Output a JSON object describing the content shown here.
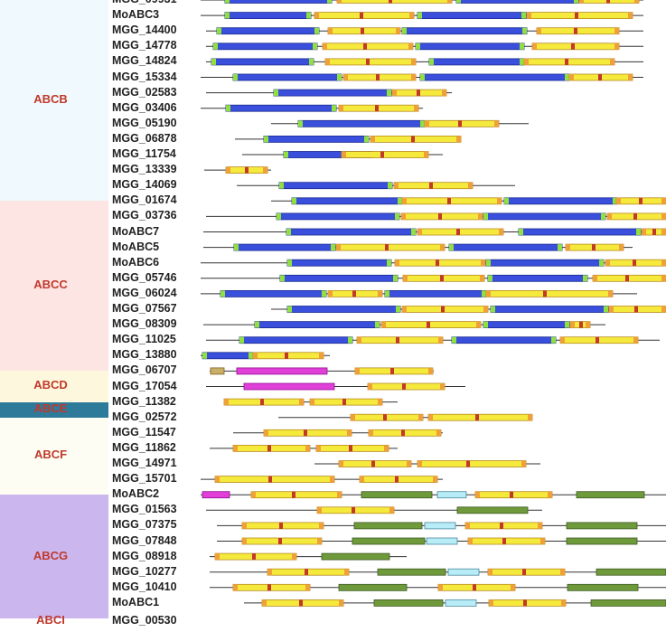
{
  "families": [
    {
      "label": "ABCB",
      "bg": "#f0f9fd",
      "text_color": "#c0392b",
      "genes": [
        "MGG_09931",
        "MoABC3",
        "MGG_14400",
        "MGG_14778",
        "MGG_14824",
        "MGG_15334",
        "MGG_02583",
        "MGG_03406",
        "MGG_05190",
        "MGG_06878",
        "MGG_11754",
        "MGG_13339",
        "MGG_14069"
      ]
    },
    {
      "label": "ABCC",
      "bg": "#fde5e3",
      "text_color": "#c0392b",
      "genes": [
        "MGG_01674",
        "MGG_03736",
        "MoABC7",
        "MoABC5",
        "MoABC6",
        "MGG_05746",
        "MGG_06024",
        "MGG_07567",
        "MGG_08309",
        "MGG_11025",
        "MGG_13880"
      ]
    },
    {
      "label": "ABCD",
      "bg": "#fdf7dd",
      "text_color": "#c0392b",
      "genes": [
        "MGG_06707",
        "MGG_17054"
      ]
    },
    {
      "label": "ABCE",
      "bg": "#2e7a9a",
      "text_color": "#c0392b",
      "genes": [
        "MGG_11382"
      ]
    },
    {
      "label": "ABCF",
      "bg": "#fdfdf3",
      "text_color": "#c0392b",
      "genes": [
        "MGG_02572",
        "MGG_11547",
        "MGG_11862",
        "MGG_14971",
        "MGG_15701"
      ]
    },
    {
      "label": "ABCG",
      "bg": "#cbb6ee",
      "text_color": "#c0392b",
      "genes": [
        "MoABC2",
        "MGG_01563",
        "MGG_07375",
        "MGG_07848",
        "MGG_08918",
        "MGG_10277",
        "MGG_10410",
        "MoABC1"
      ]
    }
  ],
  "partial_bottom": {
    "label": "ABCI",
    "gene": "MGG_00530"
  },
  "domain_colors": {
    "tmd": "#3a4fdc",
    "tmd_edge": "#8fe040",
    "nbd": "#f5ea3c",
    "nbd_edge": "#f0a038",
    "motif": "#c0392b",
    "peptide": "#e040d8",
    "abcg_tmd": "#6f9a3c",
    "pale": "#b8ecf6",
    "tan": "#c8b068",
    "backbone": "#333333"
  }
}
